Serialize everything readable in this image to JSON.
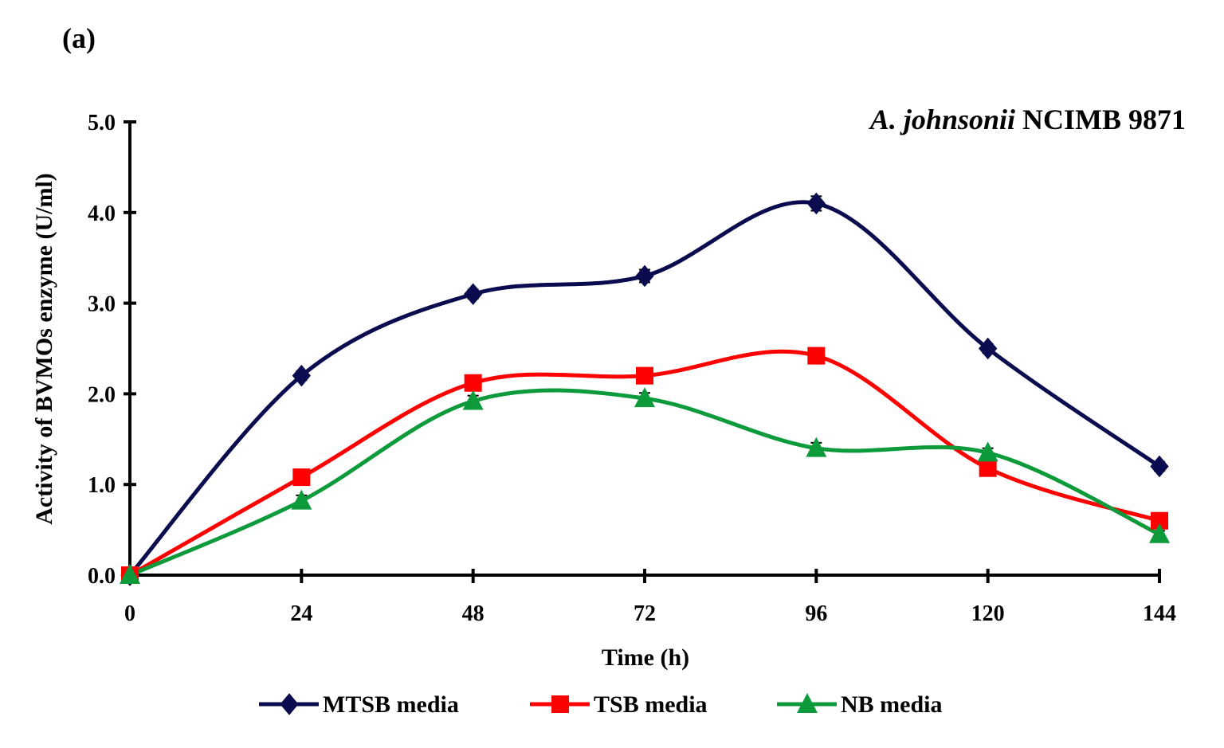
{
  "panel_label": "(a)",
  "chart_data": {
    "type": "line",
    "title": "",
    "organism": {
      "italic": "A. johnsonii",
      "regular": "NCIMB 9871"
    },
    "xlabel": "Time (h)",
    "ylabel": "Activity of BVMOs enzyme (U/ml)",
    "x": [
      0,
      24,
      48,
      72,
      96,
      120,
      144
    ],
    "x_tick_labels": [
      "0",
      "24",
      "48",
      "72",
      "96",
      "120",
      "144"
    ],
    "xlim": [
      0,
      144
    ],
    "ylim": [
      0,
      5
    ],
    "y_ticks": [
      0,
      1,
      2,
      3,
      4,
      5
    ],
    "y_tick_labels": [
      "0.0",
      "1.0",
      "2.0",
      "3.0",
      "4.0",
      "5.0"
    ],
    "grid": false,
    "legend_position": "bottom",
    "series": [
      {
        "name": "MTSB media",
        "color": "#0b0b4f",
        "marker": "diamond",
        "values": [
          0,
          2.2,
          3.1,
          3.3,
          4.1,
          2.5,
          1.2
        ],
        "errors": [
          0,
          0.05,
          0.05,
          0.07,
          0.08,
          0.05,
          0.05
        ]
      },
      {
        "name": "TSB media",
        "color": "#ff0000",
        "marker": "square",
        "values": [
          0,
          1.08,
          2.12,
          2.2,
          2.42,
          1.18,
          0.6
        ],
        "errors": [
          0,
          0.05,
          0.05,
          0.05,
          0.05,
          0.05,
          0.04
        ]
      },
      {
        "name": "NB media",
        "color": "#0c9a3a",
        "marker": "triangle",
        "values": [
          0,
          0.82,
          1.92,
          1.95,
          1.4,
          1.35,
          0.45
        ],
        "errors": [
          0,
          0.06,
          0.06,
          0.06,
          0.06,
          0.05,
          0.04
        ]
      }
    ]
  }
}
